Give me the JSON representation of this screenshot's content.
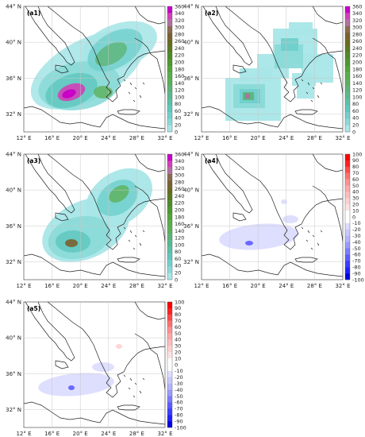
{
  "figure": {
    "panels": [
      {
        "id": "a1",
        "label": "(a1)",
        "colorbar": "magnitude",
        "field": "fire_wide"
      },
      {
        "id": "a2",
        "label": "(a2)",
        "colorbar": "magnitude",
        "field": "blocky"
      },
      {
        "id": "a3",
        "label": "(a3)",
        "colorbar": "magnitude",
        "field": "smooth"
      },
      {
        "id": "a4",
        "label": "(a4)",
        "colorbar": "difference",
        "field": "diff_a"
      },
      {
        "id": "a5",
        "label": "(a5)",
        "colorbar": "difference",
        "field": "diff_b"
      }
    ],
    "lon_ticks": [
      "12° E",
      "16° E",
      "20° E",
      "24° E",
      "28° E",
      "32° E"
    ],
    "lat_ticks": [
      "44° N",
      "40° N",
      "36° N",
      "32° N"
    ],
    "lon_range": [
      12,
      32
    ],
    "lat_range": [
      30,
      44
    ],
    "grid": true,
    "colorbar_magnitude": {
      "ticks": [
        "360",
        "340",
        "320",
        "300",
        "280",
        "260",
        "240",
        "220",
        "200",
        "180",
        "160",
        "140",
        "120",
        "100",
        "80",
        "60",
        "40",
        "20",
        "0"
      ],
      "colors": [
        "#c800c8",
        "#d240b8",
        "#b070a0",
        "#8a6a50",
        "#7a6030",
        "#6a6a20",
        "#5a7a20",
        "#4f8a2a",
        "#4e982e",
        "#52a638",
        "#58ae48",
        "#5cb058",
        "#5cb478",
        "#5ab890",
        "#5cc0a8",
        "#60c8be",
        "#70d0cc",
        "#8adad8",
        "#a8e6e8"
      ]
    },
    "colorbar_difference": {
      "ticks": [
        "100",
        "90",
        "80",
        "70",
        "60",
        "50",
        "40",
        "30",
        "20",
        "10",
        "0",
        "-10",
        "-20",
        "-30",
        "-40",
        "-50",
        "-60",
        "-70",
        "-80",
        "-90",
        "-100"
      ],
      "colors": [
        "#ff0000",
        "#ff2020",
        "#ff4a4a",
        "#ff7070",
        "#ff9090",
        "#ffa8a8",
        "#ffbcbc",
        "#ffd0d0",
        "#ffe2e2",
        "#ffffff",
        "#ffffff",
        "#dcdcff",
        "#c8c8ff",
        "#b4b4ff",
        "#9a9aff",
        "#7c7cff",
        "#5c5cff",
        "#3c3cff",
        "#2020ff",
        "#0000e0"
      ]
    }
  }
}
